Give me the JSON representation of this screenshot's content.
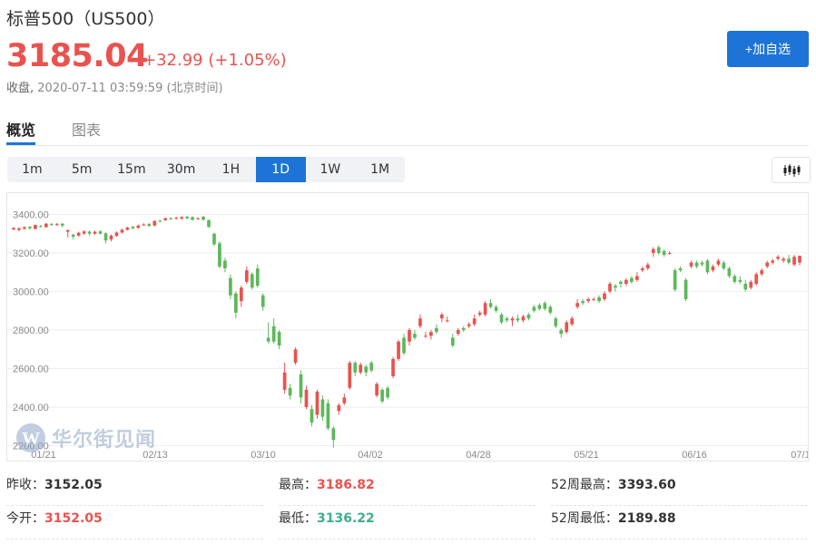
{
  "header": {
    "title": "标普500（US500）",
    "price": "3185.04",
    "change": "+32.99",
    "change_pct": "(+1.05%)",
    "status": "收盘,",
    "time": "2020-07-11 03:59:59 (北京时间)",
    "add_button": "+加自选"
  },
  "tabs": [
    {
      "label": "概览",
      "active": true
    },
    {
      "label": "图表",
      "active": false
    }
  ],
  "periods": [
    {
      "label": "1m"
    },
    {
      "label": "5m"
    },
    {
      "label": "15m"
    },
    {
      "label": "30m"
    },
    {
      "label": "1H"
    },
    {
      "label": "1D",
      "active": true
    },
    {
      "label": "1W"
    },
    {
      "label": "1M"
    }
  ],
  "watermark": "华尔街见闻",
  "colors": {
    "up": "#e8534f",
    "down": "#5cb85c",
    "accent": "#1d74d6"
  },
  "chart_data": {
    "type": "candlestick",
    "y_ticks": [
      "3400.00",
      "3200.00",
      "3000.00",
      "2800.00",
      "2600.00",
      "2400.00",
      "2200.00"
    ],
    "x_ticks": [
      "01/21",
      "02/13",
      "03/10",
      "04/02",
      "04/28",
      "05/21",
      "06/16",
      "07/1"
    ],
    "ylim": [
      2160,
      3440
    ],
    "grid": true,
    "series": [
      {
        "o": 3322,
        "c": 3330,
        "h": 3334,
        "l": 3318
      },
      {
        "o": 3320,
        "c": 3328,
        "h": 3332,
        "l": 3312
      },
      {
        "o": 3326,
        "c": 3334,
        "h": 3338,
        "l": 3320
      },
      {
        "o": 3336,
        "c": 3328,
        "h": 3340,
        "l": 3320
      },
      {
        "o": 3325,
        "c": 3345,
        "h": 3348,
        "l": 3322
      },
      {
        "o": 3340,
        "c": 3338,
        "h": 3346,
        "l": 3332
      },
      {
        "o": 3334,
        "c": 3352,
        "h": 3356,
        "l": 3330
      },
      {
        "o": 3350,
        "c": 3345,
        "h": 3356,
        "l": 3342
      },
      {
        "o": 3348,
        "c": 3350,
        "h": 3356,
        "l": 3340
      },
      {
        "o": 3352,
        "c": 3342,
        "h": 3356,
        "l": 3332
      },
      {
        "o": 3310,
        "c": 3318,
        "h": 3322,
        "l": 3280
      },
      {
        "o": 3295,
        "c": 3285,
        "h": 3300,
        "l": 3270
      },
      {
        "o": 3290,
        "c": 3305,
        "h": 3310,
        "l": 3285
      },
      {
        "o": 3300,
        "c": 3312,
        "h": 3318,
        "l": 3295
      },
      {
        "o": 3310,
        "c": 3300,
        "h": 3318,
        "l": 3290
      },
      {
        "o": 3300,
        "c": 3310,
        "h": 3316,
        "l": 3295
      },
      {
        "o": 3312,
        "c": 3300,
        "h": 3318,
        "l": 3296
      },
      {
        "o": 3302,
        "c": 3265,
        "h": 3306,
        "l": 3250
      },
      {
        "o": 3270,
        "c": 3290,
        "h": 3296,
        "l": 3260
      },
      {
        "o": 3288,
        "c": 3306,
        "h": 3312,
        "l": 3284
      },
      {
        "o": 3306,
        "c": 3320,
        "h": 3326,
        "l": 3300
      },
      {
        "o": 3320,
        "c": 3332,
        "h": 3336,
        "l": 3316
      },
      {
        "o": 3336,
        "c": 3328,
        "h": 3340,
        "l": 3322
      },
      {
        "o": 3330,
        "c": 3342,
        "h": 3348,
        "l": 3326
      },
      {
        "o": 3345,
        "c": 3348,
        "h": 3354,
        "l": 3340
      },
      {
        "o": 3350,
        "c": 3340,
        "h": 3356,
        "l": 3336
      },
      {
        "o": 3342,
        "c": 3366,
        "h": 3370,
        "l": 3338
      },
      {
        "o": 3368,
        "c": 3364,
        "h": 3372,
        "l": 3358
      },
      {
        "o": 3370,
        "c": 3380,
        "h": 3384,
        "l": 3366
      },
      {
        "o": 3380,
        "c": 3376,
        "h": 3386,
        "l": 3372
      },
      {
        "o": 3378,
        "c": 3382,
        "h": 3388,
        "l": 3374
      },
      {
        "o": 3378,
        "c": 3386,
        "h": 3390,
        "l": 3372
      },
      {
        "o": 3388,
        "c": 3380,
        "h": 3393,
        "l": 3374
      },
      {
        "o": 3386,
        "c": 3372,
        "h": 3390,
        "l": 3368
      },
      {
        "o": 3376,
        "c": 3380,
        "h": 3386,
        "l": 3372
      },
      {
        "o": 3388,
        "c": 3372,
        "h": 3393,
        "l": 3368
      },
      {
        "o": 3370,
        "c": 3335,
        "h": 3374,
        "l": 3330
      },
      {
        "o": 3300,
        "c": 3245,
        "h": 3305,
        "l": 3235
      },
      {
        "o": 3250,
        "c": 3130,
        "h": 3260,
        "l": 3120
      },
      {
        "o": 3160,
        "c": 3120,
        "h": 3175,
        "l": 3100
      },
      {
        "o": 3070,
        "c": 2980,
        "h": 3090,
        "l": 2960
      },
      {
        "o": 2990,
        "c": 2890,
        "h": 3000,
        "l": 2860
      },
      {
        "o": 2950,
        "c": 3020,
        "h": 3030,
        "l": 2920
      },
      {
        "o": 3050,
        "c": 3110,
        "h": 3130,
        "l": 3040
      },
      {
        "o": 3090,
        "c": 3020,
        "h": 3100,
        "l": 3010
      },
      {
        "o": 3120,
        "c": 3030,
        "h": 3140,
        "l": 3020
      },
      {
        "o": 2980,
        "c": 2920,
        "h": 2990,
        "l": 2900
      },
      {
        "o": 2760,
        "c": 2740,
        "h": 2840,
        "l": 2730
      },
      {
        "o": 2820,
        "c": 2740,
        "h": 2860,
        "l": 2730
      },
      {
        "o": 2790,
        "c": 2720,
        "h": 2800,
        "l": 2700
      },
      {
        "o": 2490,
        "c": 2580,
        "h": 2630,
        "l": 2470
      },
      {
        "o": 2500,
        "c": 2460,
        "h": 2520,
        "l": 2440
      },
      {
        "o": 2630,
        "c": 2700,
        "h": 2710,
        "l": 2620
      },
      {
        "o": 2570,
        "c": 2450,
        "h": 2590,
        "l": 2420
      },
      {
        "o": 2400,
        "c": 2490,
        "h": 2510,
        "l": 2390
      },
      {
        "o": 2390,
        "c": 2320,
        "h": 2410,
        "l": 2300
      },
      {
        "o": 2360,
        "c": 2480,
        "h": 2490,
        "l": 2340
      },
      {
        "o": 2440,
        "c": 2350,
        "h": 2460,
        "l": 2330
      },
      {
        "o": 2420,
        "c": 2290,
        "h": 2440,
        "l": 2280
      },
      {
        "o": 2290,
        "c": 2230,
        "h": 2300,
        "l": 2190
      },
      {
        "o": 2380,
        "c": 2410,
        "h": 2420,
        "l": 2360
      },
      {
        "o": 2420,
        "c": 2450,
        "h": 2470,
        "l": 2410
      },
      {
        "o": 2500,
        "c": 2630,
        "h": 2640,
        "l": 2490
      },
      {
        "o": 2630,
        "c": 2580,
        "h": 2640,
        "l": 2560
      },
      {
        "o": 2580,
        "c": 2620,
        "h": 2630,
        "l": 2570
      },
      {
        "o": 2610,
        "c": 2580,
        "h": 2620,
        "l": 2560
      },
      {
        "o": 2630,
        "c": 2590,
        "h": 2640,
        "l": 2580
      },
      {
        "o": 2460,
        "c": 2520,
        "h": 2530,
        "l": 2450
      },
      {
        "o": 2490,
        "c": 2430,
        "h": 2500,
        "l": 2420
      },
      {
        "o": 2500,
        "c": 2450,
        "h": 2510,
        "l": 2440
      },
      {
        "o": 2560,
        "c": 2650,
        "h": 2660,
        "l": 2550
      },
      {
        "o": 2650,
        "c": 2740,
        "h": 2750,
        "l": 2640
      },
      {
        "o": 2760,
        "c": 2680,
        "h": 2780,
        "l": 2670
      },
      {
        "o": 2740,
        "c": 2800,
        "h": 2810,
        "l": 2720
      },
      {
        "o": 2780,
        "c": 2760,
        "h": 2800,
        "l": 2750
      },
      {
        "o": 2820,
        "c": 2860,
        "h": 2880,
        "l": 2810
      },
      {
        "o": 2770,
        "c": 2770,
        "h": 2790,
        "l": 2760
      },
      {
        "o": 2770,
        "c": 2790,
        "h": 2800,
        "l": 2750
      },
      {
        "o": 2810,
        "c": 2790,
        "h": 2830,
        "l": 2780
      },
      {
        "o": 2860,
        "c": 2880,
        "h": 2890,
        "l": 2840
      },
      {
        "o": 2850,
        "c": 2850,
        "h": 2870,
        "l": 2840
      },
      {
        "o": 2760,
        "c": 2720,
        "h": 2780,
        "l": 2710
      },
      {
        "o": 2780,
        "c": 2800,
        "h": 2810,
        "l": 2770
      },
      {
        "o": 2810,
        "c": 2800,
        "h": 2820,
        "l": 2790
      },
      {
        "o": 2820,
        "c": 2830,
        "h": 2840,
        "l": 2810
      },
      {
        "o": 2830,
        "c": 2860,
        "h": 2880,
        "l": 2820
      },
      {
        "o": 2880,
        "c": 2890,
        "h": 2900,
        "l": 2870
      },
      {
        "o": 2880,
        "c": 2940,
        "h": 2950,
        "l": 2870
      },
      {
        "o": 2940,
        "c": 2920,
        "h": 2960,
        "l": 2910
      },
      {
        "o": 2920,
        "c": 2900,
        "h": 2930,
        "l": 2890
      },
      {
        "o": 2880,
        "c": 2840,
        "h": 2890,
        "l": 2830
      },
      {
        "o": 2860,
        "c": 2850,
        "h": 2870,
        "l": 2840
      },
      {
        "o": 2850,
        "c": 2860,
        "h": 2870,
        "l": 2820
      },
      {
        "o": 2860,
        "c": 2850,
        "h": 2880,
        "l": 2840
      },
      {
        "o": 2850,
        "c": 2870,
        "h": 2880,
        "l": 2840
      },
      {
        "o": 2880,
        "c": 2860,
        "h": 2890,
        "l": 2850
      },
      {
        "o": 2920,
        "c": 2900,
        "h": 2930,
        "l": 2890
      },
      {
        "o": 2930,
        "c": 2910,
        "h": 2940,
        "l": 2900
      },
      {
        "o": 2940,
        "c": 2910,
        "h": 2950,
        "l": 2900
      },
      {
        "o": 2920,
        "c": 2890,
        "h": 2930,
        "l": 2880
      },
      {
        "o": 2860,
        "c": 2820,
        "h": 2870,
        "l": 2810
      },
      {
        "o": 2800,
        "c": 2780,
        "h": 2810,
        "l": 2760
      },
      {
        "o": 2790,
        "c": 2840,
        "h": 2850,
        "l": 2780
      },
      {
        "o": 2830,
        "c": 2860,
        "h": 2870,
        "l": 2820
      },
      {
        "o": 2920,
        "c": 2940,
        "h": 2960,
        "l": 2910
      },
      {
        "o": 2950,
        "c": 2940,
        "h": 2960,
        "l": 2930
      },
      {
        "o": 2950,
        "c": 2960,
        "h": 2970,
        "l": 2940
      },
      {
        "o": 2960,
        "c": 2960,
        "h": 2970,
        "l": 2950
      },
      {
        "o": 2970,
        "c": 2950,
        "h": 2980,
        "l": 2940
      },
      {
        "o": 2960,
        "c": 2990,
        "h": 3000,
        "l": 2950
      },
      {
        "o": 3000,
        "c": 3040,
        "h": 3050,
        "l": 2990
      },
      {
        "o": 3030,
        "c": 3020,
        "h": 3040,
        "l": 3000
      },
      {
        "o": 3050,
        "c": 3040,
        "h": 3060,
        "l": 3020
      },
      {
        "o": 3040,
        "c": 3060,
        "h": 3070,
        "l": 3030
      },
      {
        "o": 3070,
        "c": 3050,
        "h": 3080,
        "l": 3040
      },
      {
        "o": 3060,
        "c": 3080,
        "h": 3100,
        "l": 3050
      },
      {
        "o": 3110,
        "c": 3120,
        "h": 3130,
        "l": 3100
      },
      {
        "o": 3120,
        "c": 3140,
        "h": 3150,
        "l": 3110
      },
      {
        "o": 3200,
        "c": 3220,
        "h": 3230,
        "l": 3180
      },
      {
        "o": 3230,
        "c": 3200,
        "h": 3240,
        "l": 3190
      },
      {
        "o": 3210,
        "c": 3190,
        "h": 3220,
        "l": 3180
      },
      {
        "o": 3200,
        "c": 3200,
        "h": 3210,
        "l": 3190
      },
      {
        "o": 3110,
        "c": 3010,
        "h": 3120,
        "l": 3000
      },
      {
        "o": 3120,
        "c": 3110,
        "h": 3130,
        "l": 3100
      },
      {
        "o": 3060,
        "c": 2960,
        "h": 3070,
        "l": 2950
      },
      {
        "o": 3130,
        "c": 3150,
        "h": 3160,
        "l": 3120
      },
      {
        "o": 3150,
        "c": 3130,
        "h": 3160,
        "l": 3120
      },
      {
        "o": 3150,
        "c": 3140,
        "h": 3160,
        "l": 3130
      },
      {
        "o": 3160,
        "c": 3100,
        "h": 3170,
        "l": 3090
      },
      {
        "o": 3110,
        "c": 3130,
        "h": 3140,
        "l": 3100
      },
      {
        "o": 3140,
        "c": 3160,
        "h": 3170,
        "l": 3130
      },
      {
        "o": 3150,
        "c": 3120,
        "h": 3160,
        "l": 3110
      },
      {
        "o": 3120,
        "c": 3080,
        "h": 3130,
        "l": 3070
      },
      {
        "o": 3080,
        "c": 3050,
        "h": 3090,
        "l": 3040
      },
      {
        "o": 3060,
        "c": 3050,
        "h": 3080,
        "l": 3040
      },
      {
        "o": 3040,
        "c": 3010,
        "h": 3060,
        "l": 3000
      },
      {
        "o": 3020,
        "c": 3050,
        "h": 3060,
        "l": 3010
      },
      {
        "o": 3040,
        "c": 3090,
        "h": 3100,
        "l": 3030
      },
      {
        "o": 3090,
        "c": 3110,
        "h": 3120,
        "l": 3080
      },
      {
        "o": 3130,
        "c": 3150,
        "h": 3160,
        "l": 3120
      },
      {
        "o": 3150,
        "c": 3160,
        "h": 3170,
        "l": 3140
      },
      {
        "o": 3170,
        "c": 3180,
        "h": 3190,
        "l": 3160
      },
      {
        "o": 3160,
        "c": 3170,
        "h": 3180,
        "l": 3150
      },
      {
        "o": 3170,
        "c": 3150,
        "h": 3190,
        "l": 3140
      },
      {
        "o": 3140,
        "c": 3180,
        "h": 3190,
        "l": 3130
      },
      {
        "o": 3150,
        "c": 3185,
        "h": 3187,
        "l": 3136
      }
    ]
  },
  "stats": {
    "prev_close_label": "昨收：",
    "prev_close": "3152.05",
    "high_label": "最高：",
    "high": "3186.82",
    "high52_label": "52周最高：",
    "high52": "3393.60",
    "open_label": "今开：",
    "open": "3152.05",
    "low_label": "最低：",
    "low": "3136.22",
    "low52_label": "52周最低：",
    "low52": "2189.88"
  }
}
